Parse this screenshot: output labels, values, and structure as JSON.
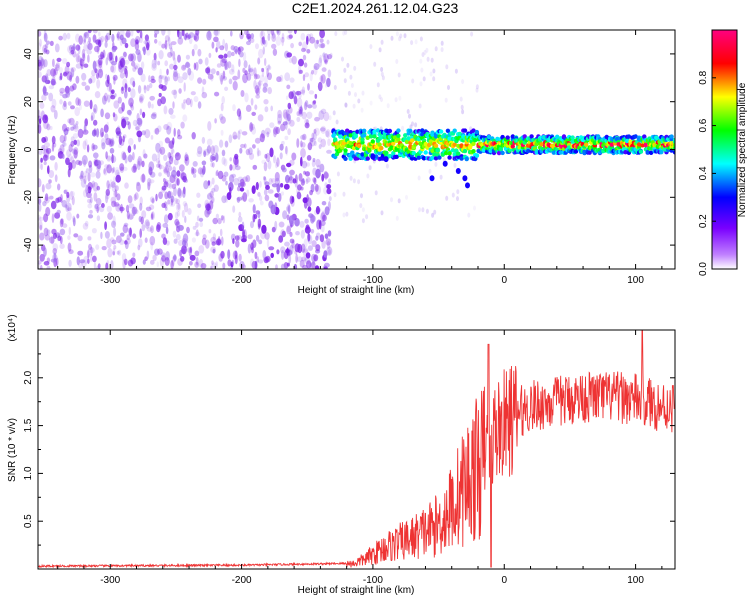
{
  "title": "C2E1.2024.261.12.04.G23",
  "chart_data": [
    {
      "type": "heatmap",
      "xlabel": "Height of straight line (km)",
      "ylabel": "Frequency (Hz)",
      "xlim": [
        -355,
        130
      ],
      "ylim": [
        -50,
        50
      ],
      "x_ticks": [
        -300,
        -200,
        -100,
        0,
        100
      ],
      "y_ticks": [
        -40,
        -20,
        0,
        20,
        40
      ],
      "colorbar": {
        "label": "Normalized spectral amplitude",
        "range": [
          0,
          1
        ],
        "ticks": [
          "0.0",
          "0.2",
          "0.4",
          "0.6",
          "0.8"
        ],
        "colors": [
          "#ffffff",
          "#7a00ff",
          "#0000ff",
          "#00ffff",
          "#00ff00",
          "#ffff00",
          "#ff0000",
          "#ff0080"
        ]
      },
      "features": [
        {
          "x_range": [
            -355,
            -135
          ],
          "freq_range": [
            -50,
            50
          ],
          "amplitude": 0.1,
          "note": "noise"
        },
        {
          "x_range": [
            -130,
            130
          ],
          "freq_center": 2,
          "width_hz": 5,
          "amplitude": 0.6,
          "note": "carrier"
        }
      ]
    },
    {
      "type": "line",
      "xlabel": "Height of straight line (km)",
      "ylabel": "SNR (10 * v/v)",
      "y_multiplier": "(x10⁴)",
      "xlim": [
        -355,
        130
      ],
      "ylim": [
        0,
        2.5
      ],
      "x_ticks": [
        -300,
        -200,
        -100,
        0,
        100
      ],
      "y_ticks": [
        0.5,
        1.0,
        1.5,
        2.0
      ],
      "y_tick_labels": [
        "0.5",
        "1.0",
        "1.5",
        "2.0"
      ],
      "line_color": "#ee3333",
      "x_knots": [
        -355,
        -200,
        -115,
        -105,
        -90,
        -70,
        -50,
        -40,
        -30,
        -20,
        -15,
        -10,
        -5,
        5,
        20,
        40,
        60,
        80,
        100,
        120,
        130
      ],
      "y_knots": [
        0.03,
        0.04,
        0.06,
        0.12,
        0.25,
        0.35,
        0.5,
        0.7,
        0.95,
        1.15,
        1.25,
        1.4,
        1.5,
        1.6,
        1.7,
        1.75,
        1.8,
        1.8,
        1.78,
        1.7,
        1.7
      ]
    }
  ]
}
